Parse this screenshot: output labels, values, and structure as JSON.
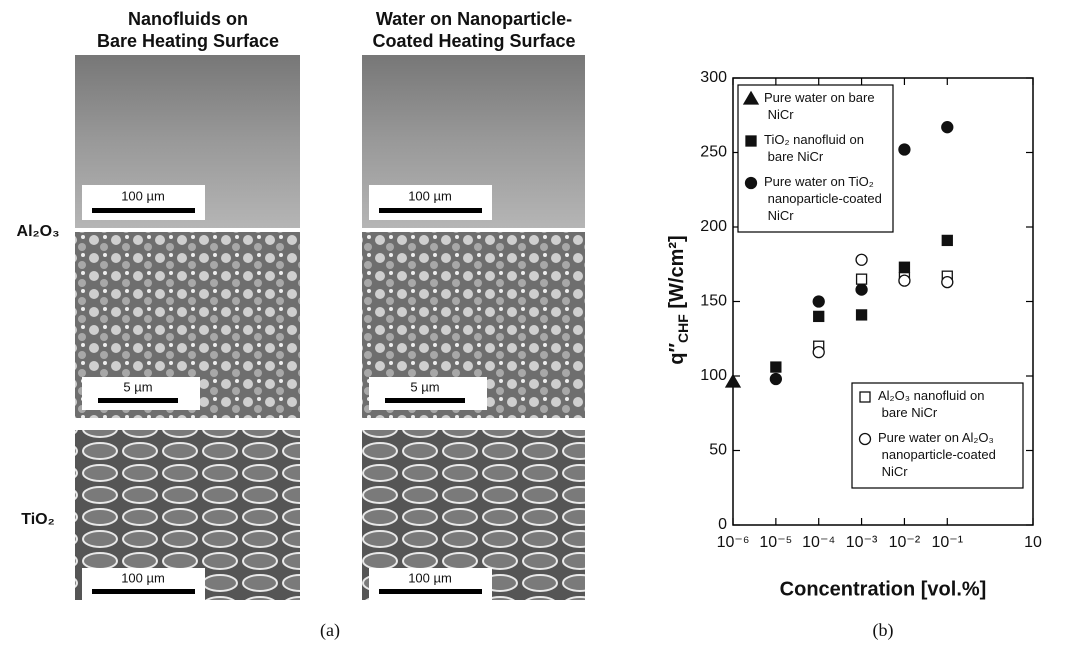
{
  "panel_a": {
    "column_headers": [
      [
        "Nanofluids on",
        "Bare Heating Surface"
      ],
      [
        "Water on Nanoparticle-",
        "Coated Heating Surface"
      ]
    ],
    "row_labels": [
      "Al₂O₃",
      "TiO₂"
    ],
    "scale_bars": [
      "100 µm",
      "100 µm",
      "5 µm",
      "5 µm",
      "100 µm",
      "100 µm"
    ],
    "caption": "(a)"
  },
  "chart_data": {
    "type": "scatter",
    "caption": "(b)",
    "x_label": "Concentration [vol.%]",
    "y_label": {
      "main": "q″",
      "sub": "CHF",
      "unit": " [W/cm²]"
    },
    "xscale": "log",
    "xlim": [
      1e-06,
      10
    ],
    "xticks": [
      {
        "value": 1e-06,
        "label": "10⁻⁶"
      },
      {
        "value": 1e-05,
        "label": "10⁻⁵"
      },
      {
        "value": 0.0001,
        "label": "10⁻⁴"
      },
      {
        "value": 0.001,
        "label": "10⁻³"
      },
      {
        "value": 0.01,
        "label": "10⁻²"
      },
      {
        "value": 0.1,
        "label": "10⁻¹"
      },
      10
    ],
    "ylim": [
      0,
      300
    ],
    "yticks": [
      0,
      50,
      100,
      150,
      200,
      250,
      300
    ],
    "series": [
      {
        "name": "Pure water on bare NiCr",
        "marker": "triangle",
        "filled": true,
        "color": "#111111",
        "legend": "upper left",
        "x": [
          1e-06
        ],
        "values": [
          96
        ]
      },
      {
        "name": "TiO₂ nanofluid on bare NiCr",
        "marker": "square",
        "filled": true,
        "color": "#111111",
        "legend": "upper left",
        "x": [
          1e-05,
          0.0001,
          0.001,
          0.01,
          0.1
        ],
        "values": [
          106,
          140,
          141,
          173,
          191
        ]
      },
      {
        "name": "Pure water on TiO₂ nanoparticle-coated NiCr",
        "marker": "circle",
        "filled": true,
        "color": "#111111",
        "legend": "upper left",
        "x": [
          1e-05,
          0.0001,
          0.001,
          0.01,
          0.1
        ],
        "values": [
          98,
          150,
          158,
          252,
          267
        ]
      },
      {
        "name": "Al₂O₃ nanofluid on bare NiCr",
        "marker": "square",
        "filled": false,
        "color": "#111111",
        "legend": "lower right",
        "x": [
          0.0001,
          0.001,
          0.01,
          0.1
        ],
        "values": [
          120,
          165,
          166,
          167
        ]
      },
      {
        "name": "Pure water on Al₂O₃ nanoparticle-coated NiCr",
        "marker": "circle",
        "filled": false,
        "color": "#111111",
        "legend": "lower right",
        "x": [
          0.0001,
          0.001,
          0.01,
          0.1
        ],
        "values": [
          116,
          178,
          164,
          163
        ]
      }
    ]
  }
}
